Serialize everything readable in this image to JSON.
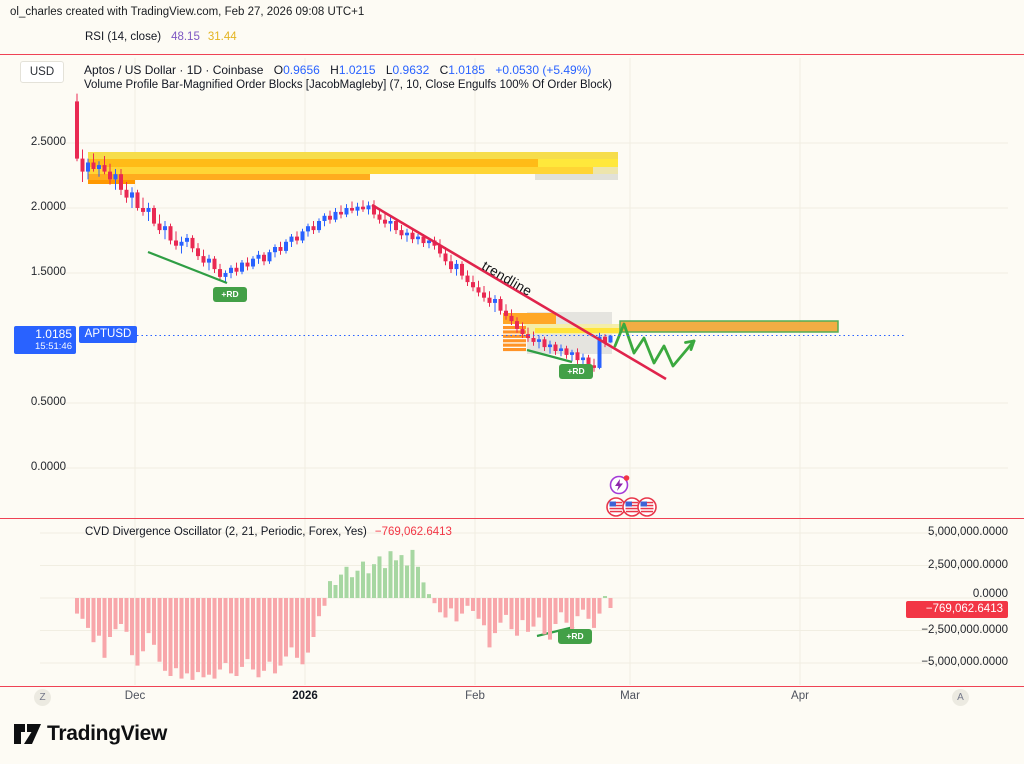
{
  "attribution": "ol_charles created with TradingView.com, Feb 27, 2026 09:08 UTC+1",
  "rsi": {
    "title": "RSI (14, close)",
    "value1": "48.15",
    "value2": "31.44"
  },
  "main": {
    "currency": "USD",
    "symbol": "Aptos / US Dollar · 1D · Coinbase",
    "ohlc": {
      "o_label": "O",
      "o": "0.9656",
      "h_label": "H",
      "h": "1.0215",
      "l_label": "L",
      "l": "0.9632",
      "c_label": "C",
      "c": "1.0185",
      "change": "+0.0530 (+5.49%)"
    },
    "indicator": "Volume Profile Bar-Magnified Order Blocks [JacobMagleby] (7, 10, Close Engulfs 100% Of Order Block)",
    "price_scale": [
      "2.5000",
      "2.0000",
      "1.5000",
      "0.5000",
      "0.0000"
    ],
    "price_label": {
      "price": "1.0185",
      "time": "15:51:46",
      "ticker": "APTUSD"
    },
    "trendline_label": "trendline",
    "rd_label": "+RD"
  },
  "cvd": {
    "title": "CVD Divergence Oscillator (2, 21, Periodic, Forex, Yes)",
    "value": "−769,062.6413",
    "badge": "−769,062.6413",
    "scale": [
      "5,000,000.0000",
      "2,500,000.0000",
      "0.0000",
      "−2,500,000.0000",
      "−5,000,000.0000"
    ]
  },
  "time_axis": [
    "Z",
    "Dec",
    "2026",
    "Feb",
    "Mar",
    "Apr",
    "A"
  ],
  "logo": "TradingView",
  "colors": {
    "background": "#FDFBF4",
    "separator": "#EF4254",
    "candle_up": "#2962FF",
    "candle_down": "#E92952",
    "hist_pos": "#A7D7A2",
    "hist_neg": "#F8A6AA",
    "accent_blue": "#2962FF",
    "value_red": "#F23645",
    "rsi_purple": "#7E57C2",
    "rsi_yellow": "#E3B422",
    "order_block_orange": "#FFA726",
    "order_block_yellow": "#FFD535",
    "trendline_red": "#E0244C",
    "annotation_green": "#2F9E44"
  },
  "chart_data": {
    "type": "candlestick+histogram",
    "symbol": "APTUSD",
    "timeframe": "1D",
    "title": "Aptos / US Dollar",
    "price_axis_ticks": [
      2.5,
      2.0,
      1.5,
      0.5,
      0.0
    ],
    "last_price": 1.0185,
    "candles_ohlc": [
      [
        2.82,
        2.88,
        2.36,
        2.38
      ],
      [
        2.38,
        2.45,
        2.2,
        2.28
      ],
      [
        2.28,
        2.38,
        2.22,
        2.35
      ],
      [
        2.35,
        2.42,
        2.28,
        2.3
      ],
      [
        2.3,
        2.36,
        2.24,
        2.33
      ],
      [
        2.33,
        2.4,
        2.26,
        2.28
      ],
      [
        2.28,
        2.34,
        2.18,
        2.22
      ],
      [
        2.22,
        2.3,
        2.14,
        2.26
      ],
      [
        2.26,
        2.3,
        2.1,
        2.14
      ],
      [
        2.14,
        2.2,
        2.04,
        2.08
      ],
      [
        2.08,
        2.16,
        2.0,
        2.12
      ],
      [
        2.12,
        2.14,
        1.98,
        2.0
      ],
      [
        2.0,
        2.08,
        1.94,
        1.97
      ],
      [
        1.97,
        2.04,
        1.9,
        2.0
      ],
      [
        2.0,
        2.02,
        1.86,
        1.88
      ],
      [
        1.88,
        1.95,
        1.8,
        1.83
      ],
      [
        1.83,
        1.9,
        1.76,
        1.86
      ],
      [
        1.86,
        1.88,
        1.72,
        1.75
      ],
      [
        1.75,
        1.82,
        1.68,
        1.71
      ],
      [
        1.71,
        1.78,
        1.65,
        1.74
      ],
      [
        1.74,
        1.8,
        1.7,
        1.77
      ],
      [
        1.77,
        1.79,
        1.66,
        1.69
      ],
      [
        1.69,
        1.73,
        1.6,
        1.63
      ],
      [
        1.63,
        1.68,
        1.55,
        1.58
      ],
      [
        1.58,
        1.64,
        1.52,
        1.61
      ],
      [
        1.61,
        1.63,
        1.5,
        1.53
      ],
      [
        1.53,
        1.57,
        1.44,
        1.47
      ],
      [
        1.47,
        1.52,
        1.42,
        1.5
      ],
      [
        1.5,
        1.56,
        1.46,
        1.54
      ],
      [
        1.54,
        1.58,
        1.48,
        1.51
      ],
      [
        1.51,
        1.6,
        1.49,
        1.58
      ],
      [
        1.58,
        1.62,
        1.52,
        1.55
      ],
      [
        1.55,
        1.63,
        1.53,
        1.61
      ],
      [
        1.61,
        1.67,
        1.57,
        1.64
      ],
      [
        1.64,
        1.66,
        1.56,
        1.59
      ],
      [
        1.59,
        1.68,
        1.57,
        1.66
      ],
      [
        1.66,
        1.72,
        1.62,
        1.7
      ],
      [
        1.7,
        1.74,
        1.64,
        1.67
      ],
      [
        1.67,
        1.76,
        1.65,
        1.74
      ],
      [
        1.74,
        1.8,
        1.7,
        1.78
      ],
      [
        1.78,
        1.82,
        1.72,
        1.75
      ],
      [
        1.75,
        1.84,
        1.73,
        1.82
      ],
      [
        1.82,
        1.88,
        1.78,
        1.86
      ],
      [
        1.86,
        1.9,
        1.8,
        1.83
      ],
      [
        1.83,
        1.92,
        1.81,
        1.9
      ],
      [
        1.9,
        1.96,
        1.86,
        1.94
      ],
      [
        1.94,
        1.98,
        1.88,
        1.91
      ],
      [
        1.91,
        2.0,
        1.89,
        1.97
      ],
      [
        1.97,
        2.02,
        1.92,
        1.95
      ],
      [
        1.95,
        2.03,
        1.93,
        2.0
      ],
      [
        2.0,
        2.05,
        1.96,
        1.98
      ],
      [
        1.98,
        2.04,
        1.94,
        2.01
      ],
      [
        2.01,
        2.06,
        1.97,
        1.99
      ],
      [
        1.99,
        2.05,
        1.95,
        2.02
      ],
      [
        2.02,
        2.06,
        1.92,
        1.95
      ],
      [
        1.95,
        1.99,
        1.88,
        1.91
      ],
      [
        1.91,
        1.97,
        1.85,
        1.88
      ],
      [
        1.88,
        1.93,
        1.82,
        1.9
      ],
      [
        1.9,
        1.92,
        1.8,
        1.83
      ],
      [
        1.83,
        1.87,
        1.76,
        1.79
      ],
      [
        1.79,
        1.84,
        1.74,
        1.81
      ],
      [
        1.81,
        1.83,
        1.73,
        1.76
      ],
      [
        1.76,
        1.8,
        1.72,
        1.78
      ],
      [
        1.78,
        1.8,
        1.7,
        1.73
      ],
      [
        1.73,
        1.77,
        1.69,
        1.75
      ],
      [
        1.75,
        1.78,
        1.68,
        1.71
      ],
      [
        1.71,
        1.76,
        1.62,
        1.65
      ],
      [
        1.65,
        1.7,
        1.56,
        1.59
      ],
      [
        1.59,
        1.64,
        1.5,
        1.53
      ],
      [
        1.53,
        1.6,
        1.48,
        1.57
      ],
      [
        1.57,
        1.59,
        1.45,
        1.48
      ],
      [
        1.48,
        1.52,
        1.4,
        1.43
      ],
      [
        1.43,
        1.48,
        1.36,
        1.39
      ],
      [
        1.39,
        1.44,
        1.32,
        1.35
      ],
      [
        1.35,
        1.4,
        1.28,
        1.31
      ],
      [
        1.31,
        1.36,
        1.24,
        1.27
      ],
      [
        1.27,
        1.33,
        1.2,
        1.3
      ],
      [
        1.3,
        1.32,
        1.18,
        1.21
      ],
      [
        1.21,
        1.26,
        1.14,
        1.17
      ],
      [
        1.17,
        1.22,
        1.1,
        1.13
      ],
      [
        1.13,
        1.16,
        1.04,
        1.07
      ],
      [
        1.07,
        1.12,
        1.0,
        1.03
      ],
      [
        1.03,
        1.08,
        0.97,
        1.0
      ],
      [
        1.0,
        1.05,
        0.94,
        0.97
      ],
      [
        0.97,
        1.02,
        0.92,
        0.99
      ],
      [
        0.99,
        1.01,
        0.9,
        0.93
      ],
      [
        0.93,
        0.98,
        0.88,
        0.95
      ],
      [
        0.95,
        0.97,
        0.87,
        0.9
      ],
      [
        0.9,
        0.95,
        0.86,
        0.92
      ],
      [
        0.92,
        0.94,
        0.84,
        0.87
      ],
      [
        0.87,
        0.91,
        0.82,
        0.89
      ],
      [
        0.89,
        0.92,
        0.8,
        0.83
      ],
      [
        0.83,
        0.88,
        0.78,
        0.85
      ],
      [
        0.85,
        0.87,
        0.76,
        0.79
      ],
      [
        0.79,
        0.84,
        0.74,
        0.77
      ],
      [
        0.77,
        1.04,
        0.76,
        1.01
      ],
      [
        1.01,
        1.03,
        0.93,
        0.96
      ],
      [
        0.9656,
        1.0215,
        0.9632,
        1.0185
      ]
    ],
    "cvd_axis_millions": [
      5,
      2.5,
      0,
      -2.5,
      -5
    ],
    "cvd_last_value": -769062.6413,
    "cvd_histogram_millions": [
      -1.2,
      -1.6,
      -2.3,
      -3.4,
      -2.9,
      -4.6,
      -3.0,
      -2.4,
      -2.0,
      -2.6,
      -4.4,
      -5.2,
      -4.1,
      -2.7,
      -3.6,
      -4.9,
      -5.6,
      -6.0,
      -5.4,
      -6.2,
      -5.8,
      -6.3,
      -5.7,
      -6.1,
      -5.9,
      -6.2,
      -5.5,
      -5.0,
      -5.8,
      -6.0,
      -5.3,
      -4.7,
      -5.5,
      -6.1,
      -5.6,
      -4.9,
      -5.8,
      -5.2,
      -4.5,
      -3.8,
      -4.6,
      -5.1,
      -4.2,
      -3.0,
      -1.4,
      -0.6,
      1.3,
      1.0,
      1.8,
      2.4,
      1.6,
      2.1,
      2.8,
      1.9,
      2.6,
      3.2,
      2.3,
      3.6,
      2.9,
      3.3,
      2.5,
      3.7,
      2.4,
      1.2,
      0.3,
      -0.4,
      -1.1,
      -1.5,
      -0.8,
      -1.8,
      -1.2,
      -0.6,
      -1.0,
      -1.6,
      -2.1,
      -3.8,
      -2.7,
      -1.9,
      -1.3,
      -2.4,
      -2.9,
      -1.7,
      -2.6,
      -2.2,
      -1.5,
      -2.8,
      -3.2,
      -2.0,
      -1.1,
      -1.9,
      -2.5,
      -1.4,
      -0.9,
      -1.6,
      -2.3,
      -1.2,
      0.15,
      -0.769
    ]
  }
}
